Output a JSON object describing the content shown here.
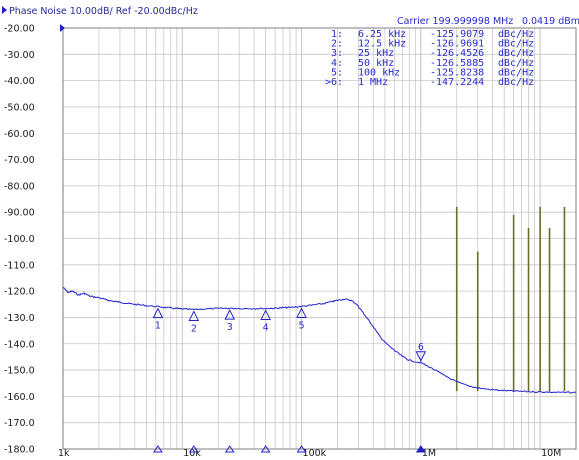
{
  "header": {
    "title": "Phase Noise 10.00dB/ Ref -20.00dBc/Hz",
    "carrier": "Carrier 199.999998 MHz",
    "carrier_level": "0.0419 dBm"
  },
  "colors": {
    "trace": "#2222cc",
    "spur": "#6b6b2a",
    "grid": "#c8c8c8",
    "marker": "#2222cc"
  },
  "markers_table": [
    {
      "id": "1:",
      "freq": "6.25 kHz",
      "value": "-125.9079",
      "unit": "dBc/Hz"
    },
    {
      "id": "2:",
      "freq": "12.5 kHz",
      "value": "-126.9691",
      "unit": "dBc/Hz"
    },
    {
      "id": "3:",
      "freq": "25 kHz",
      "value": "-126.4526",
      "unit": "dBc/Hz"
    },
    {
      "id": "4:",
      "freq": "50 kHz",
      "value": "-126.5885",
      "unit": "dBc/Hz"
    },
    {
      "id": "5:",
      "freq": "100 kHz",
      "value": "-125.8238",
      "unit": "dBc/Hz"
    },
    {
      "id": ">6:",
      "freq": "1 MHz",
      "value": "-147.2244",
      "unit": "dBc/Hz"
    }
  ],
  "chart_data": {
    "type": "line",
    "x_scale": "log",
    "xlim": [
      1000,
      20000000
    ],
    "ylim": [
      -180,
      -20
    ],
    "grid": true,
    "y_ticks": [
      "-20.00",
      "-30.00",
      "-40.00",
      "-50.00",
      "-60.00",
      "-70.00",
      "-80.00",
      "-90.00",
      "-100.0",
      "-110.0",
      "-120.0",
      "-130.0",
      "-140.0",
      "-150.0",
      "-160.0",
      "-170.0",
      "-180.0"
    ],
    "x_ticks": [
      {
        "value": 1000,
        "label": "1k"
      },
      {
        "value": 10000,
        "label": "10k"
      },
      {
        "value": 100000,
        "label": "100k"
      },
      {
        "value": 1000000,
        "label": "1M"
      },
      {
        "value": 10000000,
        "label": "10M"
      }
    ],
    "series": [
      {
        "x": [
          1000,
          1100,
          1200,
          1350,
          1500,
          1700,
          2000,
          2300,
          2600,
          3000,
          3500,
          4000,
          5000,
          6250,
          7500,
          9000,
          10000,
          12500,
          15000,
          20000,
          25000,
          30000,
          40000,
          50000,
          60000,
          70000,
          80000,
          100000,
          120000,
          150000,
          180000,
          200000,
          230000,
          260000,
          290000,
          320000,
          350000,
          400000,
          450000,
          500000,
          600000,
          700000,
          800000,
          1000000,
          1200000,
          1500000,
          2000000,
          2500000,
          3000000,
          4000000,
          5000000,
          6000000,
          8000000,
          10000000,
          12000000,
          15000000,
          20000000
        ],
        "y": [
          -118.5,
          -120.5,
          -120.0,
          -121.5,
          -120.8,
          -122.0,
          -122.5,
          -123.3,
          -123.8,
          -124.2,
          -124.7,
          -125.0,
          -125.5,
          -125.9,
          -126.3,
          -126.6,
          -126.8,
          -127.0,
          -126.8,
          -126.6,
          -126.5,
          -126.6,
          -126.6,
          -126.6,
          -126.5,
          -126.3,
          -126.2,
          -125.8,
          -125.4,
          -124.8,
          -124.0,
          -123.5,
          -123.0,
          -123.5,
          -125.0,
          -127.5,
          -130.0,
          -133.5,
          -137.0,
          -139.5,
          -142.5,
          -144.8,
          -146.3,
          -147.2,
          -149.0,
          -151.5,
          -154.5,
          -156.0,
          -156.8,
          -157.5,
          -157.8,
          -158.0,
          -158.2,
          -158.3,
          -158.4,
          -158.5,
          -158.5
        ]
      }
    ],
    "spurs": [
      {
        "x": 2000000,
        "y": -88
      },
      {
        "x": 3000000,
        "y": -105
      },
      {
        "x": 6000000,
        "y": -91
      },
      {
        "x": 8000000,
        "y": -96
      },
      {
        "x": 10000000,
        "y": -88
      },
      {
        "x": 12000000,
        "y": -96
      },
      {
        "x": 16000000,
        "y": -88
      }
    ],
    "markers": [
      {
        "label": "1",
        "x": 6250,
        "y": -125.9079
      },
      {
        "label": "2",
        "x": 12500,
        "y": -126.9691
      },
      {
        "label": "3",
        "x": 25000,
        "y": -126.4526
      },
      {
        "label": "4",
        "x": 50000,
        "y": -126.5885
      },
      {
        "label": "5",
        "x": 100000,
        "y": -125.8238
      },
      {
        "label": "6",
        "x": 1000000,
        "y": -147.2244
      }
    ]
  }
}
